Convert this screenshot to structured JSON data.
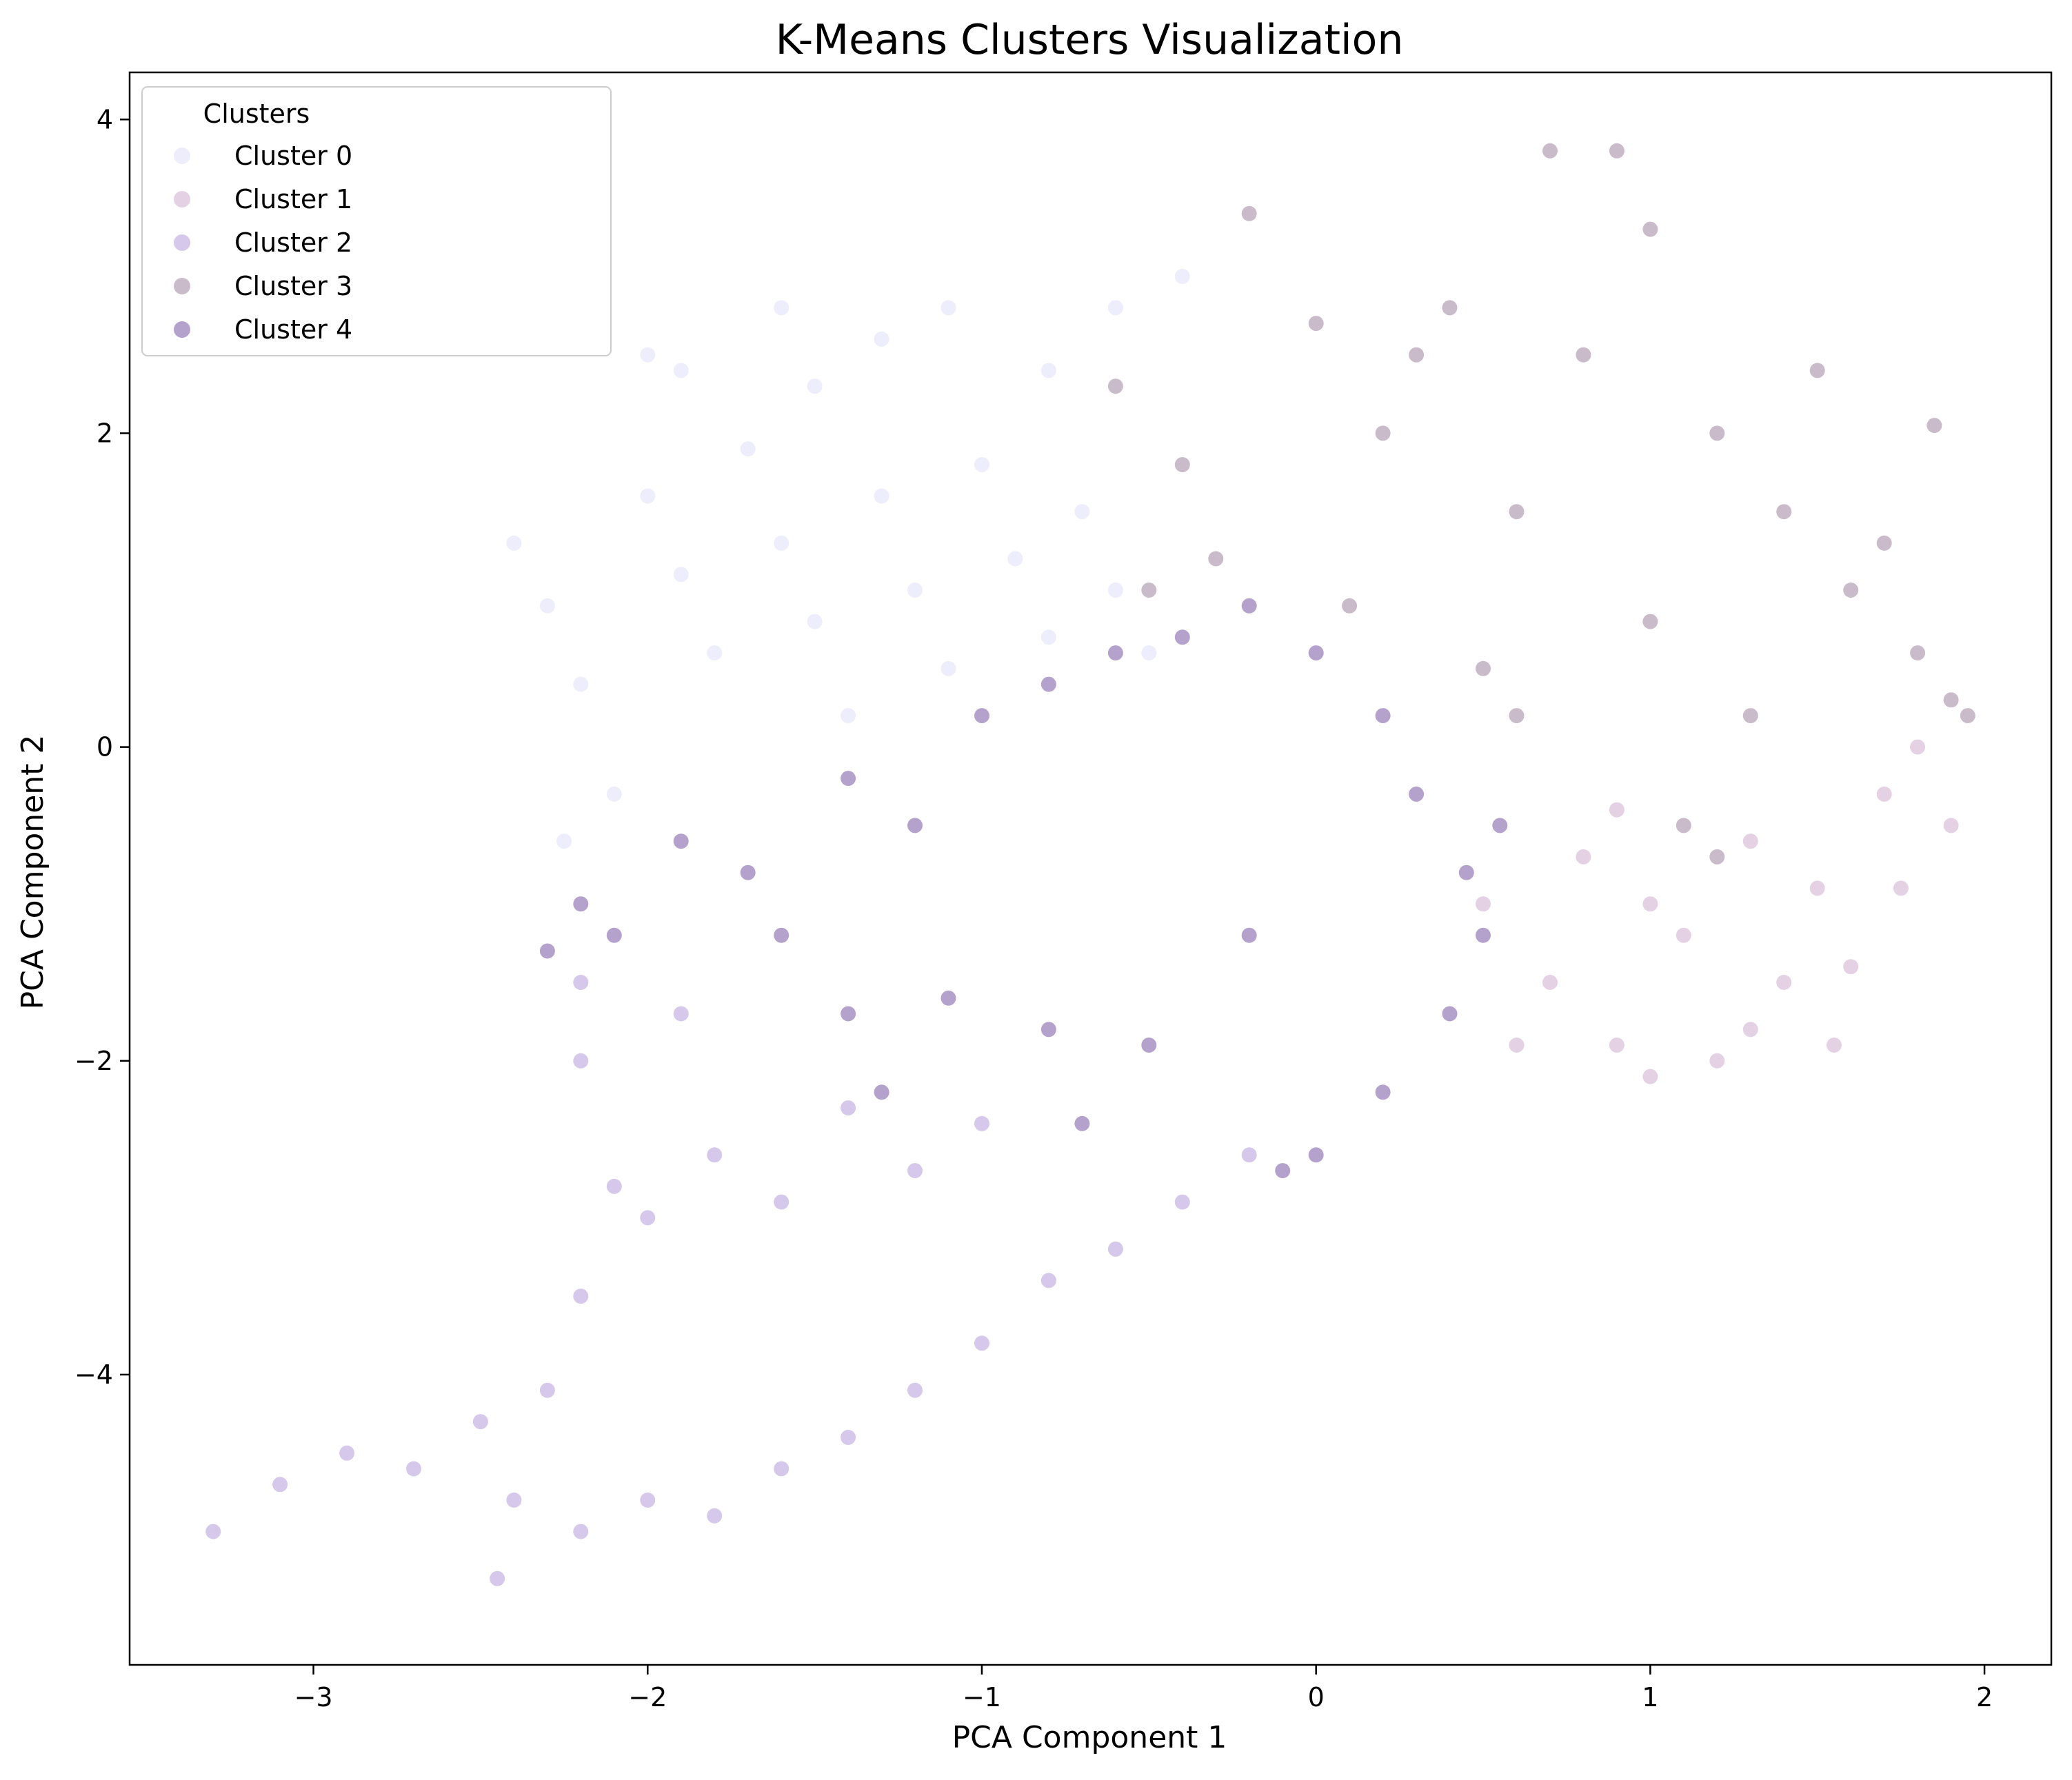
{
  "chart_data": {
    "type": "scatter",
    "title": "K-Means Clusters Visualization",
    "xlabel": "PCA Component 1",
    "ylabel": "PCA Component 2",
    "xlim": [
      -3.55,
      2.2
    ],
    "ylim": [
      -5.85,
      4.3
    ],
    "xticks": [
      -3,
      -2,
      -1,
      0,
      1,
      2
    ],
    "yticks": [
      -4,
      -2,
      0,
      2,
      4
    ],
    "xtick_labels": [
      "−3",
      "−2",
      "−1",
      "0",
      "1",
      "2"
    ],
    "ytick_labels": [
      "−4",
      "−2",
      "0",
      "2",
      "4"
    ],
    "grid": false,
    "point_alpha": 0.7,
    "legend": {
      "title": "Clusters",
      "position": "top-left",
      "entries": [
        "Cluster 0",
        "Cluster 1",
        "Cluster 2",
        "Cluster 3",
        "Cluster 4"
      ]
    },
    "series": [
      {
        "name": "Cluster 0",
        "color": "#E6E6FA",
        "points": [
          [
            -2.4,
            1.3
          ],
          [
            -2.3,
            0.9
          ],
          [
            -2.2,
            0.4
          ],
          [
            -2.0,
            1.6
          ],
          [
            -1.9,
            1.1
          ],
          [
            -1.8,
            0.6
          ],
          [
            -1.7,
            1.9
          ],
          [
            -1.6,
            1.3
          ],
          [
            -1.5,
            0.8
          ],
          [
            -1.4,
            0.2
          ],
          [
            -1.3,
            1.6
          ],
          [
            -1.2,
            1.0
          ],
          [
            -1.1,
            0.5
          ],
          [
            -1.0,
            1.8
          ],
          [
            -0.9,
            1.2
          ],
          [
            -0.8,
            0.7
          ],
          [
            -0.7,
            1.5
          ],
          [
            -0.6,
            1.0
          ],
          [
            -0.5,
            0.6
          ],
          [
            -2.1,
            -0.3
          ],
          [
            -1.9,
            2.4
          ],
          [
            -1.5,
            2.3
          ],
          [
            -1.1,
            2.8
          ],
          [
            -0.6,
            2.8
          ],
          [
            -0.4,
            3.0
          ],
          [
            -1.3,
            2.6
          ],
          [
            -0.8,
            2.4
          ],
          [
            -2.25,
            -0.6
          ],
          [
            -1.6,
            2.8
          ],
          [
            -2.0,
            2.5
          ]
        ]
      },
      {
        "name": "Cluster 1",
        "color": "#D8BFD8",
        "points": [
          [
            0.5,
            -1.0
          ],
          [
            0.7,
            -1.5
          ],
          [
            0.9,
            -1.9
          ],
          [
            1.1,
            -1.2
          ],
          [
            1.3,
            -0.6
          ],
          [
            1.5,
            -0.9
          ],
          [
            1.7,
            -0.3
          ],
          [
            1.8,
            0.0
          ],
          [
            1.3,
            -1.8
          ],
          [
            0.8,
            -0.7
          ],
          [
            1.0,
            -2.1
          ],
          [
            1.6,
            -1.4
          ],
          [
            1.75,
            -0.9
          ],
          [
            1.2,
            -2.0
          ],
          [
            0.6,
            -1.9
          ],
          [
            1.4,
            -1.5
          ],
          [
            0.9,
            -0.4
          ],
          [
            1.9,
            -0.5
          ],
          [
            1.55,
            -1.9
          ],
          [
            1.0,
            -1.0
          ]
        ]
      },
      {
        "name": "Cluster 2",
        "color": "#C3B1E1",
        "points": [
          [
            -3.3,
            -5.0
          ],
          [
            -3.1,
            -4.7
          ],
          [
            -2.9,
            -4.5
          ],
          [
            -2.7,
            -4.6
          ],
          [
            -2.5,
            -4.3
          ],
          [
            -2.3,
            -4.1
          ],
          [
            -2.2,
            -3.5
          ],
          [
            -2.1,
            -2.8
          ],
          [
            -2.2,
            -2.0
          ],
          [
            -2.2,
            -1.5
          ],
          [
            -2.0,
            -3.0
          ],
          [
            -1.8,
            -2.6
          ],
          [
            -1.6,
            -2.9
          ],
          [
            -1.4,
            -2.3
          ],
          [
            -1.2,
            -2.7
          ],
          [
            -1.0,
            -2.4
          ],
          [
            -2.45,
            -5.3
          ],
          [
            -2.2,
            -5.0
          ],
          [
            -2.0,
            -4.8
          ],
          [
            -1.8,
            -4.9
          ],
          [
            -1.6,
            -4.6
          ],
          [
            -1.4,
            -4.4
          ],
          [
            -1.2,
            -4.1
          ],
          [
            -1.0,
            -3.8
          ],
          [
            -0.8,
            -3.4
          ],
          [
            -0.6,
            -3.2
          ],
          [
            -0.4,
            -2.9
          ],
          [
            -0.2,
            -2.6
          ],
          [
            -1.9,
            -1.7
          ],
          [
            -2.4,
            -4.8
          ]
        ]
      },
      {
        "name": "Cluster 3",
        "color": "#B39EB5",
        "points": [
          [
            -0.6,
            2.3
          ],
          [
            -0.4,
            1.8
          ],
          [
            -0.3,
            1.2
          ],
          [
            0.0,
            2.7
          ],
          [
            0.2,
            2.0
          ],
          [
            0.4,
            2.8
          ],
          [
            0.6,
            1.5
          ],
          [
            0.8,
            2.5
          ],
          [
            1.0,
            3.3
          ],
          [
            1.2,
            2.0
          ],
          [
            1.4,
            1.5
          ],
          [
            1.6,
            1.0
          ],
          [
            1.8,
            0.6
          ],
          [
            1.9,
            0.3
          ],
          [
            0.1,
            0.9
          ],
          [
            0.5,
            0.5
          ],
          [
            1.0,
            0.8
          ],
          [
            1.3,
            0.2
          ],
          [
            0.7,
            3.8
          ],
          [
            0.9,
            3.8
          ],
          [
            -0.2,
            3.4
          ],
          [
            1.85,
            2.05
          ],
          [
            1.5,
            2.4
          ],
          [
            0.3,
            2.5
          ],
          [
            1.1,
            -0.5
          ],
          [
            1.2,
            -0.7
          ],
          [
            -0.5,
            1.0
          ],
          [
            0.6,
            0.2
          ],
          [
            1.7,
            1.3
          ],
          [
            1.95,
            0.2
          ]
        ]
      },
      {
        "name": "Cluster 4",
        "color": "#967BB6",
        "points": [
          [
            -1.4,
            -0.2
          ],
          [
            -1.2,
            -0.5
          ],
          [
            -1.0,
            0.2
          ],
          [
            -0.8,
            0.4
          ],
          [
            -0.6,
            0.6
          ],
          [
            -0.4,
            0.7
          ],
          [
            -0.2,
            0.9
          ],
          [
            0.0,
            0.6
          ],
          [
            0.2,
            0.2
          ],
          [
            0.3,
            -0.3
          ],
          [
            0.45,
            -0.8
          ],
          [
            0.5,
            -1.2
          ],
          [
            0.4,
            -1.7
          ],
          [
            0.2,
            -2.2
          ],
          [
            0.0,
            -2.6
          ],
          [
            -0.1,
            -2.7
          ],
          [
            -0.5,
            -1.9
          ],
          [
            -0.8,
            -1.8
          ],
          [
            -1.1,
            -1.6
          ],
          [
            -1.4,
            -1.7
          ],
          [
            -1.6,
            -1.2
          ],
          [
            -2.2,
            -1.0
          ],
          [
            -2.1,
            -1.2
          ],
          [
            -2.3,
            -1.3
          ],
          [
            -1.9,
            -0.6
          ],
          [
            -1.7,
            -0.8
          ],
          [
            -1.3,
            -2.2
          ],
          [
            -0.2,
            -1.2
          ],
          [
            0.55,
            -0.5
          ],
          [
            -0.7,
            -2.4
          ]
        ]
      }
    ]
  }
}
